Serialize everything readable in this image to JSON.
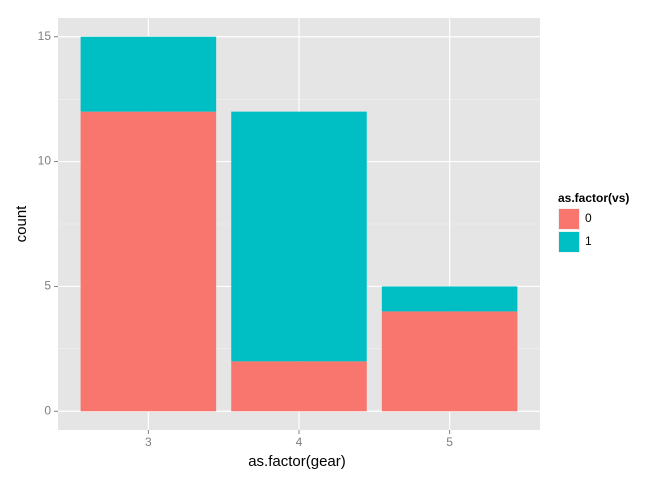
{
  "chart_data": {
    "type": "stacked_bar",
    "x_label": "as.factor(gear)",
    "y_label": "count",
    "categories": [
      "3",
      "4",
      "5"
    ],
    "series": [
      {
        "name": "0",
        "color": "#f8766d",
        "values": [
          12,
          2,
          4
        ]
      },
      {
        "name": "1",
        "color": "#00bfc4",
        "values": [
          3,
          10,
          1
        ]
      }
    ],
    "legend_title": "as.factor(vs)",
    "legend_position": "right",
    "ylim": [
      -0.75,
      15.75
    ],
    "yticks": [
      0,
      5,
      10,
      15
    ],
    "grid": true
  }
}
